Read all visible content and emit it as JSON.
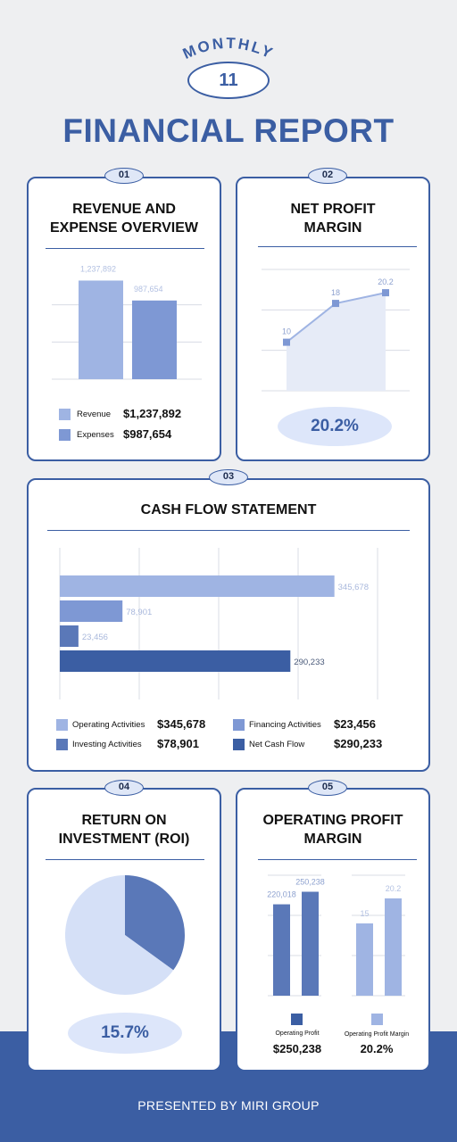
{
  "header": {
    "kicker": "MONTHLY",
    "month": "11",
    "title": "FINANCIAL REPORT"
  },
  "colors": {
    "primary": "#3b5ea3",
    "light": "#9fb4e3",
    "mid": "#7e98d4",
    "dark": "#5a78b8",
    "pale": "#d5e0f7",
    "background": "#eeeff1"
  },
  "cards": {
    "revenue": {
      "badge": "01",
      "title_line1": "REVENUE AND",
      "title_line2": "EXPENSE OVERVIEW",
      "legend": [
        {
          "label": "Revenue",
          "value": "$1,237,892"
        },
        {
          "label": "Expenses",
          "value": "$987,654"
        }
      ]
    },
    "net_profit": {
      "badge": "02",
      "title_line1": "NET PROFIT",
      "title_line2": "MARGIN",
      "highlight": "20.2%"
    },
    "cash_flow": {
      "badge": "03",
      "title": "CASH FLOW STATEMENT",
      "legend": [
        {
          "label": "Operating Activities",
          "value": "$345,678"
        },
        {
          "label": "Financing Activities",
          "value": "$23,456"
        },
        {
          "label": "Investing Activities",
          "value": "$78,901"
        },
        {
          "label": "Net Cash Flow",
          "value": "$290,233"
        }
      ]
    },
    "roi": {
      "badge": "04",
      "title_line1": "RETURN ON",
      "title_line2": "INVESTMENT (ROI)",
      "highlight": "15.7%"
    },
    "operating": {
      "badge": "05",
      "title_line1": "OPERATING PROFIT",
      "title_line2": "MARGIN",
      "legend": [
        {
          "label": "Operating Profit",
          "value": "$250,238"
        },
        {
          "label": "Operating Profit Margin",
          "value": "20.2%"
        }
      ]
    }
  },
  "footer": {
    "text": "PRESENTED BY MIRI GROUP"
  },
  "chart_data": [
    {
      "type": "bar",
      "title": "",
      "categories": [
        "Revenue",
        "Expenses"
      ],
      "values": [
        1237892,
        987654
      ],
      "labels": [
        "1,237,892",
        "987,654"
      ],
      "ylim": [
        0,
        1400000
      ],
      "grid": true
    },
    {
      "type": "area",
      "x": [
        1,
        2,
        3
      ],
      "values": [
        10,
        18,
        20.2
      ],
      "labels": [
        "10",
        "18",
        "20.2"
      ],
      "ylim": [
        0,
        25
      ],
      "grid": true
    },
    {
      "type": "bar",
      "orientation": "horizontal",
      "categories": [
        "Operating Activities",
        "Investing Activities",
        "Financing Activities",
        "Net Cash Flow"
      ],
      "values": [
        345678,
        78901,
        23456,
        290233
      ],
      "labels": [
        "345,678",
        "78,901",
        "23,456",
        "290,233"
      ],
      "xlim": [
        0,
        400000
      ],
      "grid": true
    },
    {
      "type": "pie",
      "values": [
        35,
        65
      ],
      "grid": false
    },
    {
      "type": "bar",
      "groups": [
        {
          "values": [
            220018,
            250238
          ],
          "labels": [
            "220,018",
            "250,238"
          ],
          "ylim": [
            0,
            290000
          ]
        },
        {
          "values": [
            15,
            20.2
          ],
          "labels": [
            "15",
            "20.2"
          ],
          "ylim": [
            0,
            25
          ]
        }
      ],
      "grid": true
    }
  ]
}
